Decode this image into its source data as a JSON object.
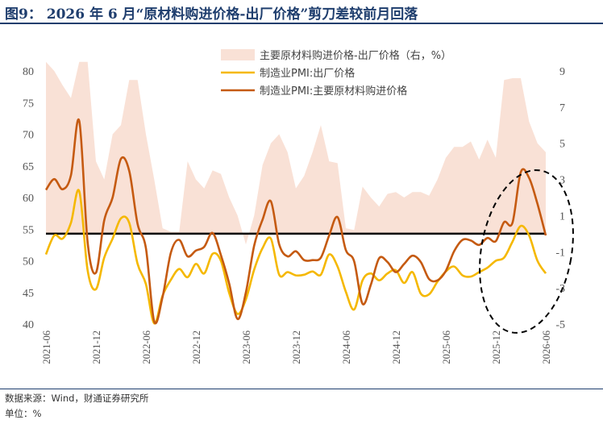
{
  "title": "图9： 2026 年 6 月“原材料购进价格-出厂价格”剪刀差较前月回落",
  "footer": {
    "source": "数据来源：Wind，财通证券研究所",
    "unit": "单位：%"
  },
  "colors": {
    "spread_fill": "#f9e1d6",
    "output_price": "#f5b800",
    "input_price": "#c55a11",
    "annotation": "#000000",
    "title": "#1f3e6e"
  },
  "chart_data": {
    "type": "line",
    "x": [
      "2021-06",
      "2021-07",
      "2021-08",
      "2021-09",
      "2021-10",
      "2021-11",
      "2021-12",
      "2022-01",
      "2022-02",
      "2022-03",
      "2022-04",
      "2022-05",
      "2022-06",
      "2022-07",
      "2022-08",
      "2022-09",
      "2022-10",
      "2022-11",
      "2022-12",
      "2023-01",
      "2023-02",
      "2023-03",
      "2023-04",
      "2023-05",
      "2023-06",
      "2023-07",
      "2023-08",
      "2023-09",
      "2023-10",
      "2023-11",
      "2023-12",
      "2024-01",
      "2024-02",
      "2024-03",
      "2024-04",
      "2024-05",
      "2024-06",
      "2024-07",
      "2024-08",
      "2024-09",
      "2024-10",
      "2024-11",
      "2024-12",
      "2025-01",
      "2025-02",
      "2025-03",
      "2025-04",
      "2025-05",
      "2025-06",
      "2025-07",
      "2025-08",
      "2025-09",
      "2025-10",
      "2025-11",
      "2025-12",
      "2026-01",
      "2026-02",
      "2026-03",
      "2026-04",
      "2026-05",
      "2026-06"
    ],
    "x_tick_labels": [
      "2021-06",
      "2021-12",
      "2022-06",
      "2022-12",
      "2023-06",
      "2023-12",
      "2024-06",
      "2024-12",
      "2025-06",
      "2025-12",
      "2026-06"
    ],
    "y_left": {
      "ticks": [
        40,
        45,
        50,
        55,
        60,
        65,
        70,
        75,
        80
      ],
      "ylim": [
        40,
        80
      ]
    },
    "y_right": {
      "ticks": [
        -5,
        -3,
        -1,
        1,
        3,
        5,
        7,
        9
      ],
      "ylim": [
        -5,
        9
      ]
    },
    "series": [
      {
        "name": "主要原材料购进价格-出厂价格（右，%）",
        "type": "area",
        "axis": "right",
        "values": [
          9.5,
          9.0,
          8.2,
          7.5,
          9.5,
          9.5,
          4.0,
          3.0,
          5.5,
          6.0,
          8.5,
          8.5,
          5.5,
          3.0,
          0.3,
          0.1,
          0.1,
          4.0,
          3.0,
          2.5,
          3.5,
          3.3,
          2.0,
          1.0,
          -0.6,
          1.0,
          3.8,
          5.0,
          5.5,
          4.5,
          2.5,
          3.2,
          4.5,
          6.0,
          4.0,
          3.9,
          0.3,
          0.2,
          2.6,
          2.0,
          1.5,
          2.2,
          2.3,
          2.0,
          2.3,
          2.3,
          2.1,
          3.0,
          4.2,
          4.8,
          4.8,
          5.1,
          4.1,
          5.2,
          4.2,
          8.5,
          8.6,
          8.6,
          6.2,
          5.0,
          4.5
        ],
        "color": "#f9e1d6"
      },
      {
        "name": "制造业PMI:出厂价格",
        "type": "line",
        "axis": "left",
        "values": [
          51.0,
          54.0,
          53.5,
          56.0,
          61.0,
          48.5,
          45.5,
          50.5,
          53.5,
          56.7,
          56.0,
          49.5,
          46.3,
          40.1,
          44.5,
          47.0,
          48.7,
          47.4,
          49.5,
          48.0,
          51.1,
          50.0,
          44.9,
          41.6,
          43.9,
          48.6,
          52.0,
          53.5,
          47.8,
          48.2,
          47.7,
          47.8,
          48.3,
          47.8,
          51.0,
          49.1,
          45.1,
          42.3,
          46.9,
          48.0,
          46.9,
          48.0,
          48.5,
          46.5,
          48.2,
          44.8,
          44.7,
          46.7,
          48.3,
          49.1,
          47.7,
          47.5,
          48.2,
          48.9,
          50.0,
          50.5,
          53.0,
          55.5,
          54.0,
          50.0,
          48.0
        ],
        "color": "#f5b800"
      },
      {
        "name": "制造业PMI:主要原材料购进价格",
        "type": "line",
        "axis": "left",
        "values": [
          61.2,
          62.9,
          61.3,
          63.5,
          72.1,
          52.9,
          48.1,
          56.4,
          60.0,
          66.1,
          64.2,
          55.8,
          52.0,
          40.4,
          44.3,
          51.3,
          53.3,
          50.7,
          51.6,
          52.2,
          54.4,
          50.9,
          46.4,
          40.8,
          45.0,
          52.4,
          56.5,
          59.4,
          52.6,
          50.7,
          51.5,
          50.1,
          50.1,
          50.5,
          54.0,
          56.9,
          51.7,
          49.9,
          43.2,
          46.2,
          50.4,
          49.8,
          48.2,
          49.5,
          50.8,
          49.8,
          47.1,
          46.9,
          48.4,
          51.5,
          53.3,
          53.2,
          52.5,
          53.6,
          53.1,
          56.1,
          56.0,
          64.0,
          63.1,
          59.0,
          54.0
        ],
        "color": "#c55a11"
      }
    ],
    "annotation": {
      "shape": "dashed-ellipse",
      "covers": [
        "2025-11",
        "2026-06"
      ]
    }
  }
}
